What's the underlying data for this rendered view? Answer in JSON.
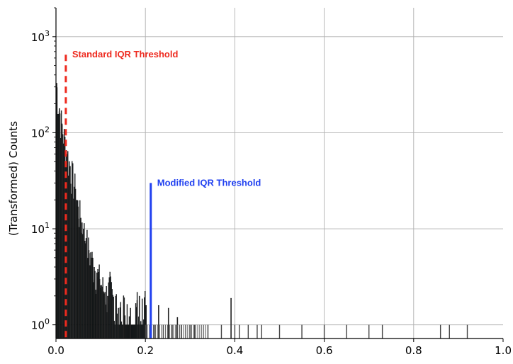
{
  "chart_data": {
    "type": "bar",
    "title": "",
    "xlabel": "",
    "ylabel": "(Transformed) Counts",
    "xlim": [
      0.0,
      1.0
    ],
    "ylim": [
      0.72,
      2000
    ],
    "yscale": "log",
    "grid": true,
    "x_ticks": [
      "0.0",
      "0.2",
      "0.4",
      "0.6",
      "0.8",
      "1.0"
    ],
    "x_tick_values": [
      0.0,
      0.2,
      0.4,
      0.6,
      0.8,
      1.0
    ],
    "y_ticks": [
      {
        "value": 1,
        "base": "10",
        "exp": "0"
      },
      {
        "value": 10,
        "base": "10",
        "exp": "1"
      },
      {
        "value": 100,
        "base": "10",
        "exp": "2"
      },
      {
        "value": 1000,
        "base": "10",
        "exp": "3"
      }
    ],
    "bar_color": "#0d1316",
    "histogram_peaks": [
      [
        0.0,
        330
      ],
      [
        0.006,
        180
      ],
      [
        0.012,
        120
      ],
      [
        0.018,
        85
      ],
      [
        0.024,
        60
      ],
      [
        0.03,
        45
      ],
      [
        0.036,
        35
      ],
      [
        0.042,
        26
      ],
      [
        0.048,
        17
      ],
      [
        0.054,
        13
      ],
      [
        0.06,
        10
      ],
      [
        0.066,
        8
      ],
      [
        0.072,
        6
      ],
      [
        0.078,
        5
      ],
      [
        0.084,
        4
      ],
      [
        0.09,
        3.5
      ],
      [
        0.096,
        3
      ],
      [
        0.102,
        2.5
      ],
      [
        0.108,
        2.2
      ],
      [
        0.114,
        2
      ],
      [
        0.12,
        2.5
      ],
      [
        0.126,
        1.8
      ],
      [
        0.132,
        2
      ],
      [
        0.138,
        1.5
      ],
      [
        0.15,
        1.7
      ],
      [
        0.165,
        1.5
      ],
      [
        0.18,
        1.8
      ],
      [
        0.185,
        2.0
      ],
      [
        0.2,
        1.6
      ],
      [
        0.228,
        1.6
      ],
      [
        0.25,
        1.5
      ],
      [
        0.27,
        1.2
      ],
      [
        0.39,
        1.9
      ]
    ],
    "sparse_counts_x": [
      0.22,
      0.23,
      0.24,
      0.26,
      0.27,
      0.28,
      0.29,
      0.3,
      0.31,
      0.34,
      0.37,
      0.4,
      0.41,
      0.43,
      0.45,
      0.46,
      0.5,
      0.55,
      0.6,
      0.65,
      0.7,
      0.73,
      0.86,
      0.88,
      0.92
    ],
    "thresholds": [
      {
        "name": "Standard IQR Threshold",
        "x": 0.022,
        "y_top": 650,
        "style": "dashed",
        "color": "#ee2a1f"
      },
      {
        "name": "Modified IQR Threshold",
        "x": 0.212,
        "y_top": 30,
        "style": "solid",
        "color": "#2040f0"
      }
    ]
  }
}
